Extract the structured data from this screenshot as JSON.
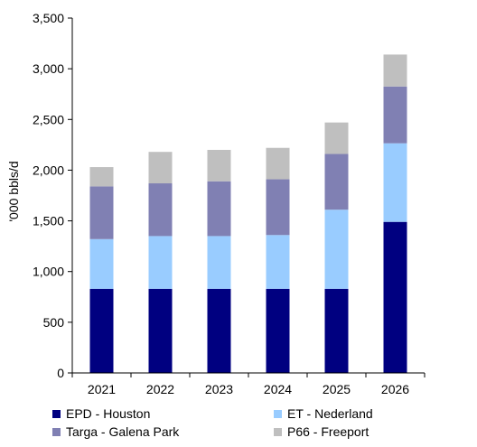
{
  "chart_data": {
    "type": "bar",
    "stacked": true,
    "categories": [
      "2021",
      "2022",
      "2023",
      "2024",
      "2025",
      "2026"
    ],
    "series": [
      {
        "name": "EPD - Houston",
        "color": "#000080",
        "values": [
          830,
          830,
          830,
          830,
          830,
          1490
        ]
      },
      {
        "name": "ET - Nederland",
        "color": "#99CCFF",
        "values": [
          490,
          520,
          520,
          530,
          780,
          775
        ]
      },
      {
        "name": "Targa - Galena Park",
        "color": "#8080B3",
        "values": [
          520,
          520,
          540,
          550,
          550,
          560
        ]
      },
      {
        "name": "P66 - Freeport",
        "color": "#BFBFBF",
        "values": [
          190,
          310,
          310,
          310,
          310,
          315
        ]
      }
    ],
    "ylabel": "'000 bbls/d",
    "xlabel": "",
    "ylim": [
      0,
      3500
    ],
    "yticks": [
      0,
      500,
      1000,
      1500,
      2000,
      2500,
      3000,
      3500
    ],
    "ytick_labels": [
      "0",
      "500",
      "1,000",
      "1,500",
      "2,000",
      "2,500",
      "3,000",
      "3,500"
    ],
    "grid": false,
    "legend_position": "bottom"
  }
}
